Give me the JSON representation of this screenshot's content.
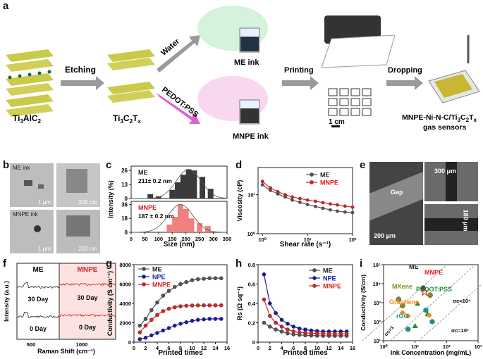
{
  "panels": {
    "a": "a",
    "b": "b",
    "c": "c",
    "d": "d",
    "e": "e",
    "f": "f",
    "g": "g",
    "h": "h",
    "i": "i"
  },
  "schematic": {
    "precursor": "Ti3AlC2",
    "etching": "Etching",
    "mxene": "Ti3C2Tx",
    "water": "Water",
    "pedot": "PEDOT:PSS",
    "me_ink": "ME ink",
    "mnpe_ink": "MNPE ink",
    "printing": "Printing",
    "scale": "1 cm",
    "dropping": "Dropping",
    "sensor_line1": "MNPE-Ni-N-C/Ti3C2Tx",
    "sensor_line2": "gas sensors"
  },
  "tem": {
    "me_label": "ME ink",
    "mnpe_label": "MNPE ink",
    "scale1": "1 μm",
    "scale2": "200 nm",
    "scale3": "1 μm",
    "scale4": "200 nm"
  },
  "sem": {
    "gap": "Gap",
    "scale_main": "200 μm",
    "width": "300 μm",
    "height": "180 μm"
  },
  "chart_data": [
    {
      "panel": "c",
      "type": "bar",
      "xlabel": "Size (nm)",
      "ylabel": "Intensity (%)",
      "xlim": [
        0,
        350
      ],
      "xticks": [
        0,
        50,
        100,
        150,
        200,
        250,
        300,
        350
      ],
      "series": [
        {
          "name": "ME",
          "annotation": "211± 0.2 nm",
          "color": "#3a3a3a",
          "x": [
            70,
            100,
            150,
            170,
            190,
            210,
            230,
            260,
            290
          ],
          "values": [
            4,
            2,
            8,
            15,
            22,
            27,
            26,
            20,
            9
          ],
          "ylim": [
            0,
            30
          ],
          "yticks": [
            0,
            13,
            26
          ]
        },
        {
          "name": "MNPE",
          "annotation": "187 ± 0.2 nm",
          "color": "#f08080",
          "x": [
            140,
            160,
            180,
            200,
            220,
            250,
            280
          ],
          "values": [
            10,
            20,
            36,
            30,
            18,
            12,
            8
          ],
          "ylim": [
            0,
            40
          ],
          "yticks": [
            0,
            18,
            36
          ]
        }
      ]
    },
    {
      "panel": "d",
      "type": "line",
      "xlabel": "Shear rate (s⁻¹)",
      "ylabel": "Viscosity (cP)",
      "xscale": "log",
      "yscale": "log",
      "xlim": [
        0.8,
        100
      ],
      "ylim": [
        1,
        50
      ],
      "xticks_label": [
        "10⁰",
        "10¹",
        "10²"
      ],
      "yticks_label": [
        "10⁰",
        "10¹"
      ],
      "legend": "top-right",
      "series": [
        {
          "name": "ME",
          "color": "#555555",
          "x": [
            1,
            1.5,
            2.2,
            3.2,
            4.6,
            6.8,
            10,
            15,
            22,
            32,
            46,
            68,
            100
          ],
          "values": [
            18,
            13,
            10.5,
            8.8,
            7.3,
            6.4,
            5.6,
            5.0,
            4.5,
            4.1,
            3.8,
            3.6,
            3.5
          ]
        },
        {
          "name": "MNPE",
          "color": "#e02020",
          "x": [
            1,
            1.5,
            2.2,
            3.2,
            4.6,
            6.8,
            10,
            15,
            22,
            32,
            46,
            68,
            100
          ],
          "values": [
            22,
            15,
            12,
            10,
            8.8,
            8.0,
            7.3,
            6.8,
            6.3,
            5.8,
            5.5,
            5.1,
            4.8
          ]
        }
      ]
    },
    {
      "panel": "f",
      "type": "line",
      "xlabel": "Raman Shift (cm⁻¹)",
      "ylabel": "Intensity (a.u.)",
      "xticks": [
        500,
        1000
      ],
      "sections": [
        "ME",
        "MNPE"
      ],
      "series": [
        {
          "name": "ME 30 Day",
          "label": "30 Day",
          "color": "#333333"
        },
        {
          "name": "ME 0 Day",
          "label": "0 Day",
          "color": "#333333"
        },
        {
          "name": "MNPE 30 Day",
          "label": "30 Day",
          "color": "#e02020"
        },
        {
          "name": "MNPE 0 Day",
          "label": "0 Day",
          "color": "#e02020"
        }
      ]
    },
    {
      "panel": "g",
      "type": "line",
      "xlabel": "Printed times",
      "ylabel": "Conductivity (S cm⁻¹)",
      "xlim": [
        0,
        16
      ],
      "ylim": [
        0,
        8000
      ],
      "xticks": [
        0,
        2,
        4,
        6,
        8,
        10,
        12,
        14,
        16
      ],
      "yticks": [
        0,
        2000,
        4000,
        6000,
        8000
      ],
      "legend": "top-left",
      "series": [
        {
          "name": "ME",
          "color": "#555555",
          "x": [
            1,
            2,
            3,
            4,
            5,
            6,
            7,
            8,
            9,
            10,
            11,
            12,
            13,
            14,
            15
          ],
          "values": [
            1700,
            2400,
            3300,
            4100,
            4800,
            5300,
            5700,
            6000,
            6200,
            6400,
            6500,
            6550,
            6600,
            6600,
            6600
          ]
        },
        {
          "name": "NPE",
          "color": "#1a1aa8",
          "x": [
            1,
            2,
            3,
            4,
            5,
            6,
            7,
            8,
            9,
            10,
            11,
            12,
            13,
            14,
            15
          ],
          "values": [
            300,
            450,
            700,
            950,
            1200,
            1450,
            1700,
            1900,
            2050,
            2200,
            2300,
            2350,
            2400,
            2400,
            2400
          ]
        },
        {
          "name": "MNPE",
          "color": "#e02020",
          "x": [
            1,
            2,
            3,
            4,
            5,
            6,
            7,
            8,
            9,
            10,
            11,
            12,
            13,
            14,
            15
          ],
          "values": [
            1000,
            1700,
            2300,
            2800,
            3200,
            3450,
            3600,
            3700,
            3750,
            3780,
            3800,
            3800,
            3800,
            3800,
            3800
          ]
        }
      ]
    },
    {
      "panel": "h",
      "type": "line",
      "xlabel": "Printed times",
      "ylabel": "Rs (Ω sq⁻¹)",
      "xlim": [
        0,
        16
      ],
      "ylim": [
        0,
        0.8
      ],
      "xticks": [
        0,
        2,
        4,
        6,
        8,
        10,
        12,
        14,
        16
      ],
      "yticks": [
        0,
        0.2,
        0.4,
        0.6,
        0.8
      ],
      "legend": "top-right",
      "series": [
        {
          "name": "ME",
          "color": "#555555",
          "x": [
            1,
            2,
            3,
            4,
            5,
            6,
            7,
            8,
            9,
            10,
            11,
            12,
            13,
            14,
            15
          ],
          "values": [
            0.2,
            0.16,
            0.13,
            0.11,
            0.09,
            0.08,
            0.075,
            0.07,
            0.068,
            0.066,
            0.065,
            0.065,
            0.065,
            0.065,
            0.065
          ]
        },
        {
          "name": "NPE",
          "color": "#1a1aa8",
          "x": [
            1,
            2,
            3,
            4,
            5,
            6,
            7,
            8,
            9,
            10,
            11,
            12,
            13,
            14,
            15
          ],
          "values": [
            0.7,
            0.4,
            0.3,
            0.23,
            0.19,
            0.16,
            0.14,
            0.13,
            0.12,
            0.115,
            0.11,
            0.11,
            0.11,
            0.11,
            0.11
          ]
        },
        {
          "name": "MNPE",
          "color": "#e02020",
          "x": [
            1,
            2,
            3,
            4,
            5,
            6,
            7,
            8,
            9,
            10,
            11,
            12,
            13,
            14,
            15
          ],
          "values": [
            0.44,
            0.27,
            0.2,
            0.16,
            0.13,
            0.11,
            0.1,
            0.095,
            0.09,
            0.088,
            0.086,
            0.085,
            0.085,
            0.085,
            0.085
          ]
        }
      ]
    },
    {
      "panel": "i",
      "type": "scatter",
      "xlabel": "Ink Concentration (mg/mL)",
      "ylabel": "Conductivity (S/cm)",
      "xscale": "log",
      "yscale": "log",
      "xlim": [
        1,
        1000
      ],
      "ylim": [
        10,
        100000
      ],
      "xticks_label": [
        "10⁰",
        "10¹",
        "10²",
        "10³"
      ],
      "yticks_label": [
        "10¹",
        "10²",
        "10³",
        "10⁴",
        "10⁵"
      ],
      "guides": [
        "σc=1",
        "σc=10²",
        "σc=10⁴"
      ],
      "series": [
        {
          "name": "ME",
          "color": "#444444",
          "marker": "circle",
          "x": [
            18
          ],
          "values": [
            5800
          ]
        },
        {
          "name": "MNPE",
          "color": "#e02020",
          "marker": "star",
          "x": [
            20
          ],
          "values": [
            3800
          ]
        },
        {
          "name": "MXene",
          "color": "#8c8c1e",
          "marker": "circle",
          "x": [
            3,
            30,
            4
          ],
          "values": [
            1500,
            2500,
            700
          ]
        },
        {
          "name": "PEDOT:PSS",
          "color": "#1e8c2e",
          "marker": "triangle",
          "x": [
            12,
            25,
            10
          ],
          "values": [
            900,
            250,
            60
          ]
        },
        {
          "name": "Graphene",
          "color": "#f08c1e",
          "marker": "diamond",
          "x": [
            4,
            6,
            28
          ],
          "values": [
            300,
            200,
            220
          ]
        },
        {
          "name": "rGO",
          "color": "#1e8c8c",
          "marker": "hexagon",
          "x": [
            6,
            35,
            22
          ],
          "values": [
            40,
            100,
            400
          ]
        }
      ]
    }
  ]
}
